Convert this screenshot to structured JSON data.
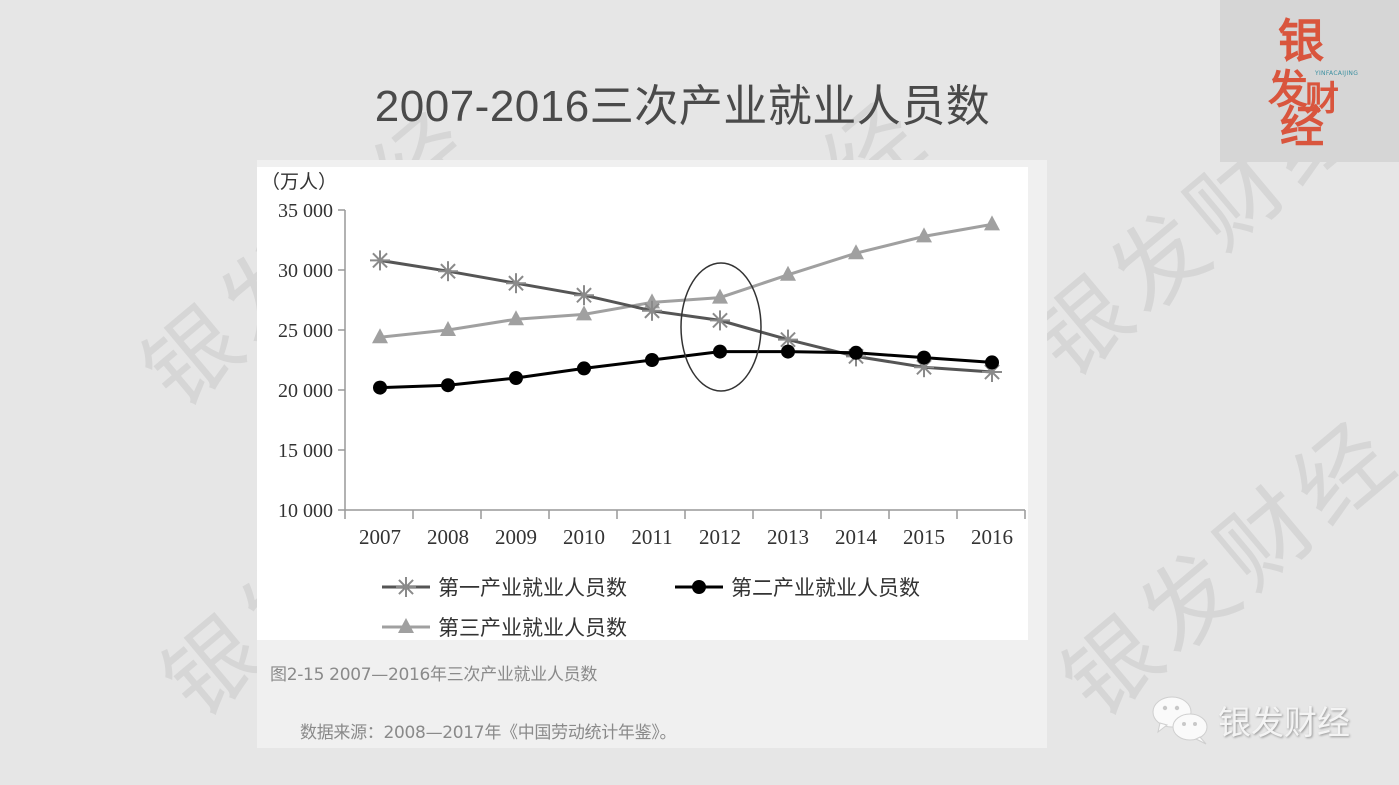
{
  "slide": {
    "title": "2007-2016三次产业就业人员数",
    "watermark_text": "银发财经"
  },
  "logo": {
    "chars": [
      "银",
      "发",
      "财",
      "经"
    ],
    "subtitle": "YINFACAIJING",
    "color": "#d9553d"
  },
  "figure": {
    "caption": "图2-15 2007—2016年三次产业就业人员数",
    "source": "数据来源：2008—2017年《中国劳动统计年鉴》。"
  },
  "footer": {
    "account_icon": "wechat-icon",
    "account_name": "银发财经"
  },
  "chart_data": {
    "type": "line",
    "title": "2007-2016三次产业就业人员数",
    "xlabel": "",
    "ylabel": "（万人）",
    "categories": [
      "2007",
      "2008",
      "2009",
      "2010",
      "2011",
      "2012",
      "2013",
      "2014",
      "2015",
      "2016"
    ],
    "ylim": [
      10000,
      35000
    ],
    "yticks": [
      10000,
      15000,
      20000,
      25000,
      30000,
      35000
    ],
    "ytick_labels": [
      "10 000",
      "15 000",
      "20 000",
      "25 000",
      "30 000",
      "35 000"
    ],
    "grid": false,
    "legend_position": "bottom",
    "series": [
      {
        "name": "第一产业就业人员数",
        "marker": "asterisk",
        "color": "#555555",
        "marker_color": "#8a8a8a",
        "values": [
          30800,
          29900,
          28900,
          27900,
          26600,
          25800,
          24200,
          22800,
          21900,
          21500
        ]
      },
      {
        "name": "第二产业就业人员数",
        "marker": "circle",
        "color": "#000000",
        "marker_color": "#000000",
        "values": [
          20200,
          20400,
          21000,
          21800,
          22500,
          23200,
          23200,
          23100,
          22700,
          22300
        ]
      },
      {
        "name": "第三产业就业人员数",
        "marker": "triangle",
        "color": "#a0a0a0",
        "marker_color": "#a0a0a0",
        "values": [
          24400,
          25000,
          25900,
          26300,
          27300,
          27700,
          29600,
          31400,
          32800,
          33800
        ]
      }
    ],
    "annotations": [
      {
        "type": "ellipse",
        "around_category": "2012",
        "description": "highlight of 2012 values"
      }
    ]
  }
}
